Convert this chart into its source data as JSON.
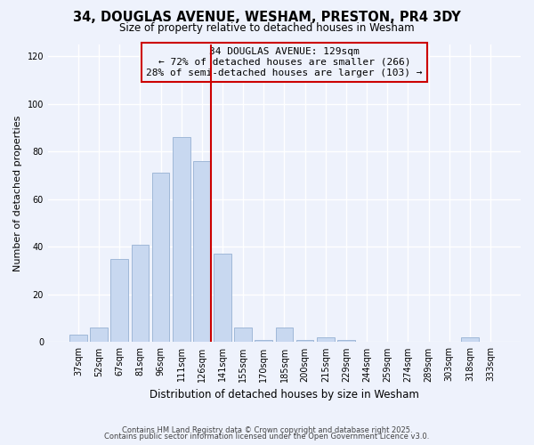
{
  "title": "34, DOUGLAS AVENUE, WESHAM, PRESTON, PR4 3DY",
  "subtitle": "Size of property relative to detached houses in Wesham",
  "xlabel": "Distribution of detached houses by size in Wesham",
  "ylabel": "Number of detached properties",
  "bar_color": "#c8d8f0",
  "bar_edge_color": "#a0b8d8",
  "categories": [
    "37sqm",
    "52sqm",
    "67sqm",
    "81sqm",
    "96sqm",
    "111sqm",
    "126sqm",
    "141sqm",
    "155sqm",
    "170sqm",
    "185sqm",
    "200sqm",
    "215sqm",
    "229sqm",
    "244sqm",
    "259sqm",
    "274sqm",
    "289sqm",
    "303sqm",
    "318sqm",
    "333sqm"
  ],
  "values": [
    3,
    6,
    35,
    41,
    71,
    86,
    76,
    37,
    6,
    1,
    6,
    1,
    2,
    1,
    0,
    0,
    0,
    0,
    0,
    2,
    0
  ],
  "vline_bar_index": 6,
  "vline_color": "#cc0000",
  "annotation_title": "34 DOUGLAS AVENUE: 129sqm",
  "annotation_line1": "← 72% of detached houses are smaller (266)",
  "annotation_line2": "28% of semi-detached houses are larger (103) →",
  "annotation_box_edge": "#cc0000",
  "ylim": [
    0,
    125
  ],
  "yticks": [
    0,
    20,
    40,
    60,
    80,
    100,
    120
  ],
  "footer1": "Contains HM Land Registry data © Crown copyright and database right 2025.",
  "footer2": "Contains public sector information licensed under the Open Government Licence v3.0.",
  "bg_color": "#eef2fc",
  "grid_color": "#ffffff"
}
